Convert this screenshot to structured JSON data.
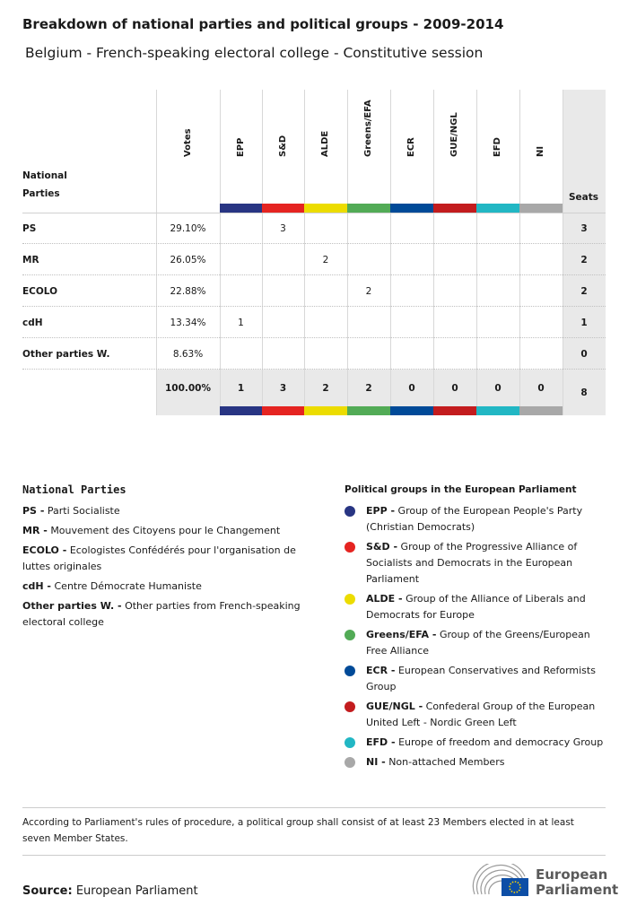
{
  "title": "Breakdown of national parties and political groups - 2009-2014",
  "subtitle": "Belgium - French-speaking electoral college - Constitutive session",
  "chart_data": {
    "type": "table",
    "party_header": "National Parties",
    "votes_header": "Votes",
    "seats_header": "Seats",
    "groups": [
      {
        "name": "EPP",
        "color": "#283583"
      },
      {
        "name": "S&D",
        "color": "#e52421"
      },
      {
        "name": "ALDE",
        "color": "#ecdc00"
      },
      {
        "name": "Greens/EFA",
        "color": "#52ab56"
      },
      {
        "name": "ECR",
        "color": "#004a98"
      },
      {
        "name": "GUE/NGL",
        "color": "#c31c1e"
      },
      {
        "name": "EFD",
        "color": "#22b7c4"
      },
      {
        "name": "NI",
        "color": "#a8a8a8"
      }
    ],
    "rows": [
      {
        "party": "PS",
        "votes": "29.10%",
        "seats_by_group": [
          "",
          "3",
          "",
          "",
          "",
          "",
          "",
          ""
        ],
        "seats": "3"
      },
      {
        "party": "MR",
        "votes": "26.05%",
        "seats_by_group": [
          "",
          "",
          "2",
          "",
          "",
          "",
          "",
          ""
        ],
        "seats": "2"
      },
      {
        "party": "ECOLO",
        "votes": "22.88%",
        "seats_by_group": [
          "",
          "",
          "",
          "2",
          "",
          "",
          "",
          ""
        ],
        "seats": "2"
      },
      {
        "party": "cdH",
        "votes": "13.34%",
        "seats_by_group": [
          "1",
          "",
          "",
          "",
          "",
          "",
          "",
          ""
        ],
        "seats": "1"
      },
      {
        "party": "Other parties W.",
        "votes": "8.63%",
        "seats_by_group": [
          "",
          "",
          "",
          "",
          "",
          "",
          "",
          ""
        ],
        "seats": "0"
      }
    ],
    "totals": {
      "votes": "100.00%",
      "seats_by_group": [
        "1",
        "3",
        "2",
        "2",
        "0",
        "0",
        "0",
        "0"
      ],
      "seats": "8"
    }
  },
  "legend_national": {
    "title": "National Parties",
    "items": [
      {
        "abbr": "PS -",
        "name": "Parti Socialiste"
      },
      {
        "abbr": "MR -",
        "name": "Mouvement des Citoyens pour le Changement"
      },
      {
        "abbr": "ECOLO -",
        "name": "Ecologistes Confédérés pour l'organisation de luttes originales"
      },
      {
        "abbr": "cdH -",
        "name": "Centre Démocrate Humaniste"
      },
      {
        "abbr": "Other parties W. -",
        "name": "Other parties from French-speaking electoral college"
      }
    ]
  },
  "legend_groups": {
    "title": "Political groups in the European Parliament",
    "items": [
      {
        "abbr": "EPP -",
        "name": "Group of the European People's Party (Christian Democrats)"
      },
      {
        "abbr": "S&D -",
        "name": "Group of the Progressive Alliance of Socialists and Democrats in the European Parliament"
      },
      {
        "abbr": "ALDE -",
        "name": "Group of the Alliance of Liberals and Democrats for Europe"
      },
      {
        "abbr": "Greens/EFA -",
        "name": "Group of the Greens/European Free Alliance"
      },
      {
        "abbr": "ECR -",
        "name": "European Conservatives and Reformists Group"
      },
      {
        "abbr": "GUE/NGL -",
        "name": "Confederal Group of the European United Left - Nordic Green Left"
      },
      {
        "abbr": "EFD -",
        "name": "Europe of freedom and democracy Group"
      },
      {
        "abbr": "NI -",
        "name": "Non-attached Members"
      }
    ]
  },
  "footnote": "According to Parliament's rules of procedure, a political group shall consist of at least 23 Members elected in at least seven Member States.",
  "source_label": "Source:",
  "source": "European Parliament",
  "logo_text": "European Parliament"
}
